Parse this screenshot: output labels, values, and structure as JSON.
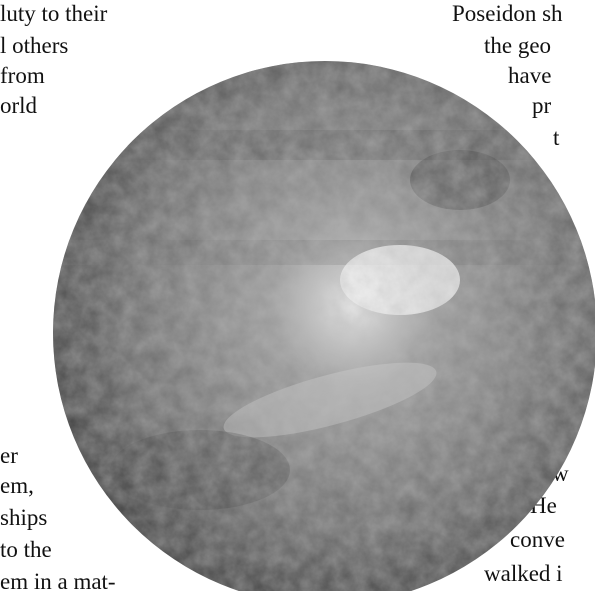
{
  "left_column": {
    "top_lines": [
      "luty to their",
      "l others",
      "from",
      "orld"
    ],
    "bottom_lines": [
      "er",
      "em,",
      "ships",
      "to the",
      "em in a mat-"
    ]
  },
  "right_column": {
    "top_lines": [
      "Poseidon sh",
      "the geo",
      "have",
      "pr",
      "t"
    ],
    "bottom_lines": [
      "w",
      "He",
      "conve",
      "walked i"
    ]
  }
}
